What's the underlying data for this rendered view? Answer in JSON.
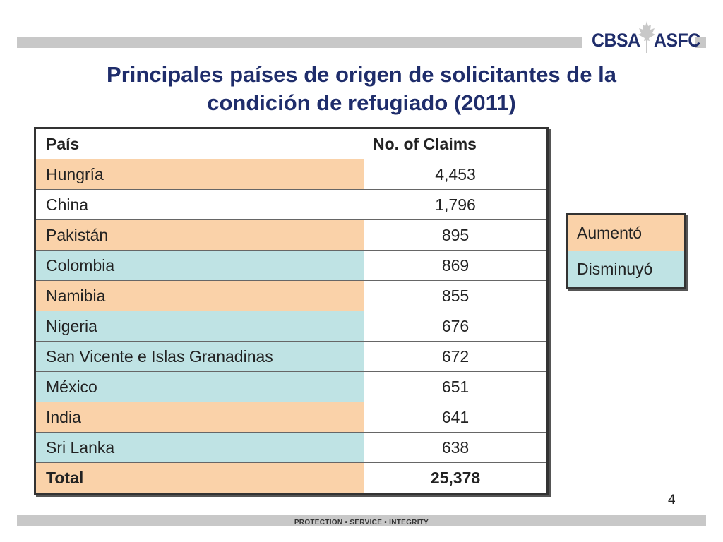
{
  "logo": {
    "left": "CBSA",
    "right": "ASFC"
  },
  "title": {
    "line1": "Principales países de origen de solicitantes de la",
    "line2": "condición de refugiado (2011)"
  },
  "table": {
    "headers": {
      "country": "País",
      "claims": "No. of Claims"
    },
    "rows": [
      {
        "country": "Hungría",
        "claims": "4,453",
        "trend": "up"
      },
      {
        "country": "China",
        "claims": "1,796",
        "trend": "none"
      },
      {
        "country": "Pakistán",
        "claims": "895",
        "trend": "up"
      },
      {
        "country": "Colombia",
        "claims": "869",
        "trend": "down"
      },
      {
        "country": "Namibia",
        "claims": "855",
        "trend": "up"
      },
      {
        "country": "Nigeria",
        "claims": "676",
        "trend": "down"
      },
      {
        "country": "San Vicente e Islas Granadinas",
        "claims": "672",
        "trend": "down"
      },
      {
        "country": "México",
        "claims": "651",
        "trend": "down"
      },
      {
        "country": "India",
        "claims": "641",
        "trend": "up"
      },
      {
        "country": "Sri Lanka",
        "claims": "638",
        "trend": "down"
      }
    ],
    "total": {
      "label": "Total",
      "claims": "25,378"
    }
  },
  "legend": {
    "increased": "Aumentó",
    "decreased": "Disminuyó"
  },
  "colors": {
    "increased": "#fad2a9",
    "decreased": "#bfe3e4",
    "title": "#1f2d6b"
  },
  "page_number": "4",
  "footer": {
    "motto": "PROTECTION • SERVICE • INTEGRITY"
  }
}
